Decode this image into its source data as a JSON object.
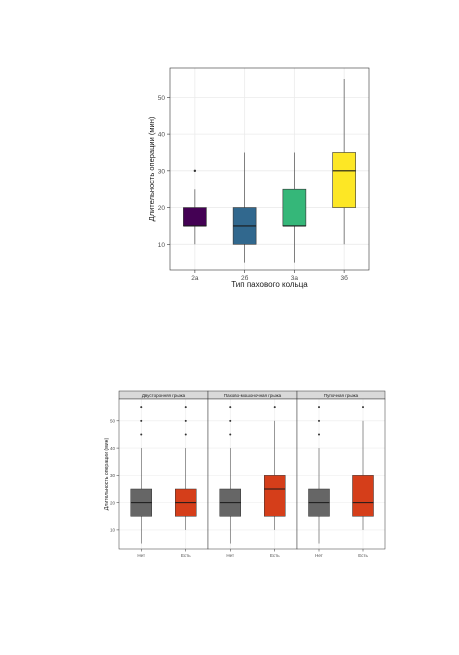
{
  "chart_data": [
    {
      "type": "boxplot",
      "xlabel": "Тип пахового кольца",
      "ylabel": "Длительность операции (мин)",
      "ylim": [
        3,
        58
      ],
      "yticks": [
        10,
        20,
        30,
        40,
        50
      ],
      "grid": true,
      "legend": "none",
      "categories": [
        "2а",
        "2б",
        "3а",
        "3б"
      ],
      "boxes": [
        {
          "category": "2а",
          "min": 10,
          "q1": 15,
          "median": 15,
          "q3": 20,
          "max": 25,
          "outliers": [
            30
          ],
          "color": "#440154"
        },
        {
          "category": "2б",
          "min": 5,
          "q1": 10,
          "median": 15,
          "q3": 20,
          "max": 35,
          "outliers": [],
          "color": "#31688E"
        },
        {
          "category": "3а",
          "min": 5,
          "q1": 15,
          "median": 15,
          "q3": 25,
          "max": 35,
          "outliers": [],
          "color": "#35B779"
        },
        {
          "category": "3б",
          "min": 10,
          "q1": 20,
          "median": 30,
          "q3": 35,
          "max": 55,
          "outliers": [],
          "color": "#FDE725"
        }
      ]
    },
    {
      "type": "boxplot",
      "facets": [
        "Двусторонняя грыжа",
        "Пахово-мошоночная грыжа",
        "Пупочная грыжа"
      ],
      "categories": [
        "Нет",
        "Есть"
      ],
      "ylabel": "Длительность операции (мин)",
      "xlabel": "",
      "ylim": [
        3,
        58
      ],
      "yticks": [
        10,
        20,
        30,
        40,
        50
      ],
      "grid": true,
      "legend": "none",
      "colors": {
        "Нет": "#666666",
        "Есть": "#D53E1A"
      },
      "boxes": [
        {
          "facet": "Двусторонняя грыжа",
          "category": "Нет",
          "min": 5,
          "q1": 15,
          "median": 20,
          "q3": 25,
          "max": 40,
          "outliers": [
            45,
            50,
            55
          ]
        },
        {
          "facet": "Двусторонняя грыжа",
          "category": "Есть",
          "min": 10,
          "q1": 15,
          "median": 20,
          "q3": 25,
          "max": 40,
          "outliers": [
            45,
            50,
            55
          ]
        },
        {
          "facet": "Пахово-мошоночная грыжа",
          "category": "Нет",
          "min": 5,
          "q1": 15,
          "median": 20,
          "q3": 25,
          "max": 40,
          "outliers": [
            45,
            50,
            55
          ]
        },
        {
          "facet": "Пахово-мошоночная грыжа",
          "category": "Есть",
          "min": 10,
          "q1": 15,
          "median": 25,
          "q3": 30,
          "max": 50,
          "outliers": [
            55
          ]
        },
        {
          "facet": "Пупочная грыжа",
          "category": "Нет",
          "min": 5,
          "q1": 15,
          "median": 20,
          "q3": 25,
          "max": 40,
          "outliers": [
            45,
            50,
            55
          ]
        },
        {
          "facet": "Пупочная грыжа",
          "category": "Есть",
          "min": 10,
          "q1": 15,
          "median": 20,
          "q3": 30,
          "max": 50,
          "outliers": [
            55
          ]
        }
      ]
    }
  ]
}
